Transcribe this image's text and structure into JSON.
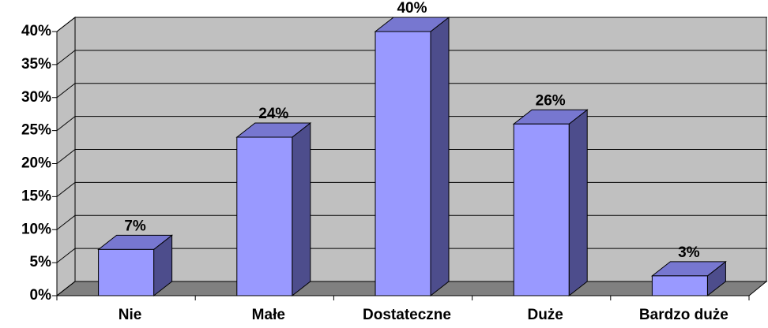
{
  "chart_data": {
    "type": "bar3d",
    "categories": [
      "Nie",
      "Małe",
      "Dostateczne",
      "Duże",
      "Bardzo duże"
    ],
    "values": [
      7,
      24,
      40,
      26,
      3
    ],
    "value_labels": [
      "7%",
      "24%",
      "40%",
      "26%",
      "3%"
    ],
    "color": "#9999ff",
    "ylim": [
      0,
      40
    ],
    "yticks": [
      {
        "value": 0,
        "label": "0%"
      },
      {
        "value": 5,
        "label": "5%"
      },
      {
        "value": 10,
        "label": "10%"
      },
      {
        "value": 15,
        "label": "15%"
      },
      {
        "value": 20,
        "label": "20%"
      },
      {
        "value": 25,
        "label": "25%"
      },
      {
        "value": 30,
        "label": "30%"
      },
      {
        "value": 35,
        "label": "35%"
      },
      {
        "value": 40,
        "label": "40%"
      }
    ],
    "grid": true
  }
}
